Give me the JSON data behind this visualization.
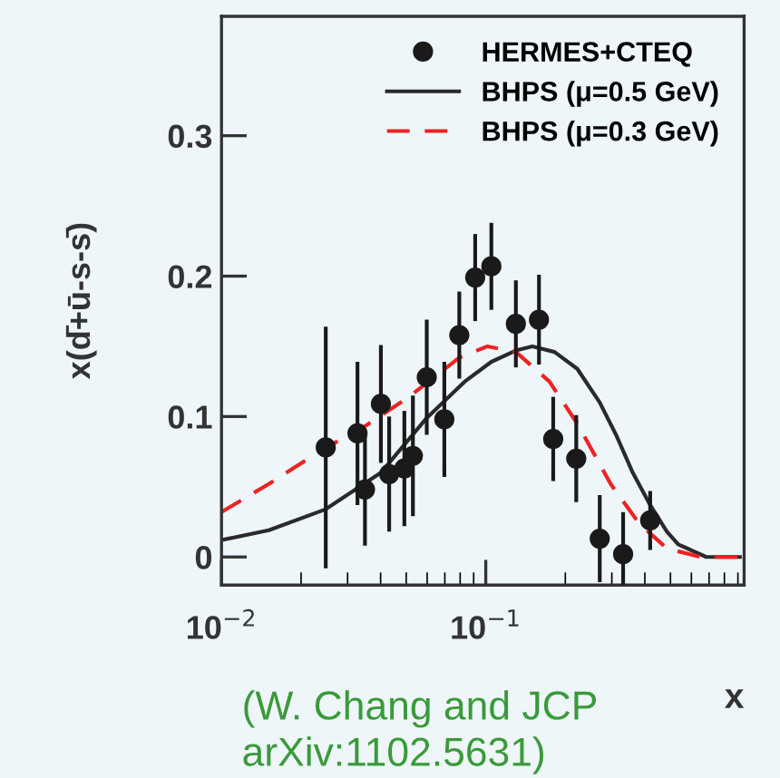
{
  "chart_data": {
    "type": "scatter",
    "xlabel": "x",
    "ylabel": "x(d̄+ū-s-s̄)",
    "log": "x",
    "xlim": [
      0.01,
      0.95
    ],
    "ylim": [
      -0.02,
      0.385
    ],
    "xticks": [
      {
        "value": 0.01,
        "label": "10$^{−2}$"
      },
      {
        "value": 0.1,
        "label": "10$^{−1}$"
      }
    ],
    "yticks": [
      {
        "value": 0,
        "label": "0"
      },
      0.1,
      0.2,
      0.3
    ],
    "legend": "top right",
    "grid": false,
    "annotations": [
      "(W. Chang and JCP\narXiv:1102.5631)"
    ],
    "series": [
      {
        "name": "HERMES+CTEQ",
        "marker": "circle",
        "color": "#1a1a1a",
        "x": [
          0.0248,
          0.0327,
          0.0349,
          0.0401,
          0.0431,
          0.0492,
          0.053,
          0.0598,
          0.0697,
          0.0794,
          0.0912,
          0.105,
          0.13,
          0.159,
          0.18,
          0.22,
          0.27,
          0.331,
          0.419
        ],
        "values": [
          0.078,
          0.088,
          0.048,
          0.109,
          0.059,
          0.063,
          0.072,
          0.128,
          0.098,
          0.158,
          0.199,
          0.207,
          0.166,
          0.169,
          0.084,
          0.07,
          0.013,
          0.002,
          0.026
        ],
        "errors": [
          0.086,
          0.051,
          0.04,
          0.042,
          0.041,
          0.041,
          0.043,
          0.041,
          0.041,
          0.031,
          0.031,
          0.031,
          0.031,
          0.032,
          0.03,
          0.031,
          0.031,
          0.03,
          0.021
        ]
      },
      {
        "name": "BHPS (μ=0.5 GeV)",
        "type": "line",
        "line_style": "solid",
        "color": "#2a2a2a",
        "x": [
          0.01,
          0.0151,
          0.0248,
          0.0401,
          0.0598,
          0.0834,
          0.105,
          0.13,
          0.15,
          0.182,
          0.222,
          0.27,
          0.313,
          0.36,
          0.419,
          0.485,
          0.535,
          0.683,
          0.916
        ],
        "values": [
          0.012,
          0.019,
          0.034,
          0.06,
          0.099,
          0.125,
          0.139,
          0.147,
          0.15,
          0.146,
          0.134,
          0.11,
          0.086,
          0.06,
          0.037,
          0.018,
          0.009,
          0.0,
          0.0
        ]
      },
      {
        "name": "BHPS (μ=0.3 GeV)",
        "type": "line",
        "line_style": "dashed",
        "color": "#ee2222",
        "x": [
          0.01,
          0.0151,
          0.0248,
          0.033,
          0.0512,
          0.0794,
          0.1014,
          0.13,
          0.174,
          0.222,
          0.297,
          0.38,
          0.485,
          0.65,
          0.916
        ],
        "values": [
          0.032,
          0.052,
          0.078,
          0.09,
          0.114,
          0.142,
          0.15,
          0.146,
          0.125,
          0.095,
          0.052,
          0.024,
          0.006,
          0.0,
          0.0
        ]
      }
    ]
  }
}
